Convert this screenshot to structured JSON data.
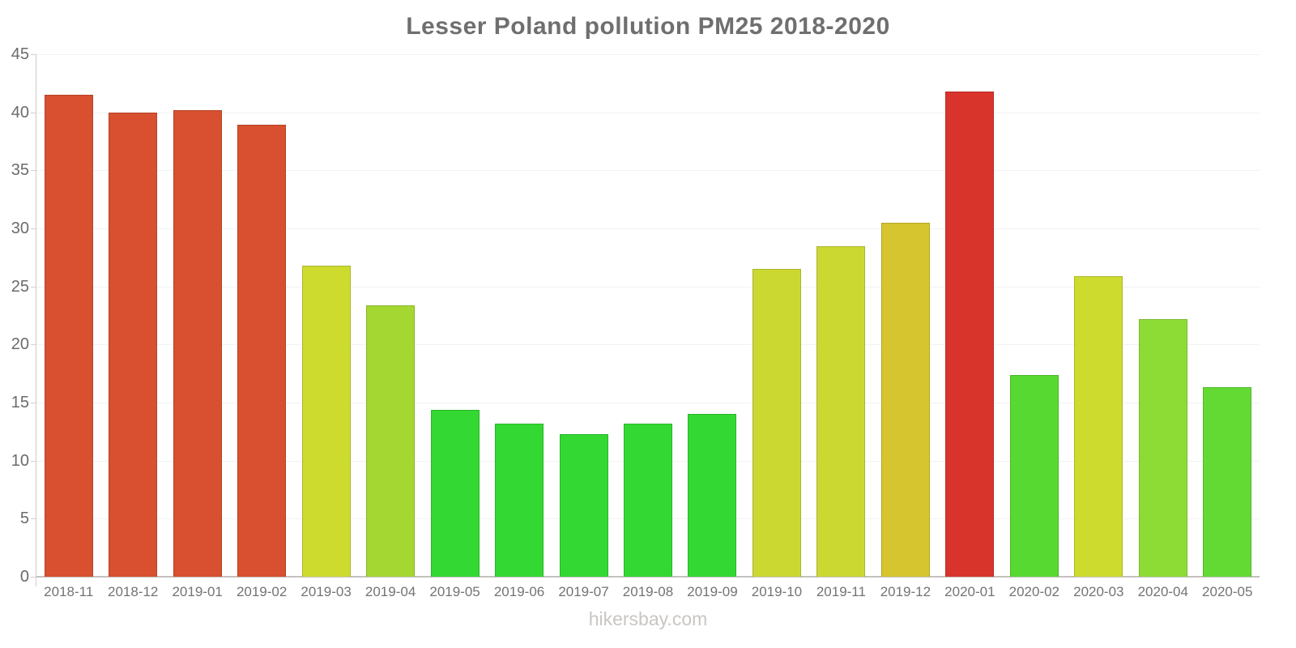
{
  "page": {
    "title": "Lesser Poland pollution PM25 2018-2020",
    "footer": "hikersbay.com"
  },
  "chart_data": {
    "type": "bar",
    "title": "Lesser Poland pollution PM25 2018-2020",
    "xlabel": "",
    "ylabel": "",
    "ylim": [
      0,
      45
    ],
    "yticks": [
      0,
      5,
      10,
      15,
      20,
      25,
      30,
      35,
      40,
      45
    ],
    "grid": "horizontal",
    "legend": "none",
    "categories": [
      "2018-11",
      "2018-12",
      "2019-01",
      "2019-02",
      "2019-03",
      "2019-04",
      "2019-05",
      "2019-06",
      "2019-07",
      "2019-08",
      "2019-09",
      "2019-10",
      "2019-11",
      "2019-12",
      "2020-01",
      "2020-02",
      "2020-03",
      "2020-04",
      "2020-05"
    ],
    "values": [
      41.5,
      40.0,
      40.2,
      38.9,
      26.8,
      23.4,
      14.4,
      13.2,
      12.3,
      13.2,
      14.0,
      26.5,
      28.5,
      30.5,
      41.8,
      17.4,
      25.9,
      22.2,
      16.3
    ],
    "bar_colors": [
      "#D8502F",
      "#D8502F",
      "#D8502F",
      "#D8502F",
      "#CDDB2F",
      "#A5D733",
      "#33D832",
      "#33D832",
      "#33D832",
      "#33D832",
      "#33D832",
      "#CBD832",
      "#CBD832",
      "#D6C52E",
      "#D8342C",
      "#57D932",
      "#CDDB2F",
      "#8DDC36",
      "#63DA33"
    ],
    "palette_semantics": {
      "high_pollution_red": "#D8342C",
      "high_pollution_orange_red": "#D8502F",
      "medium_pollution_gold": "#D6C52E",
      "medium_pollution_yellow_green": "#CDDB2F",
      "low_pollution_green": "#33D832"
    }
  }
}
